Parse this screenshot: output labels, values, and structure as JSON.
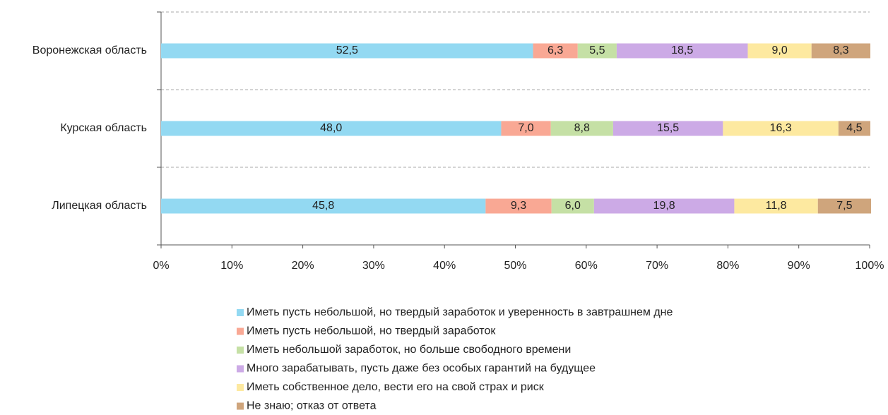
{
  "chart_data": {
    "type": "stacked-bar-horizontal",
    "categories": [
      "Воронежская область",
      "Курская область",
      "Липецкая область"
    ],
    "xlim": [
      0,
      100
    ],
    "xticks": [
      {
        "value": 0,
        "label": "0%"
      },
      {
        "value": 10,
        "label": "10%"
      },
      {
        "value": 20,
        "label": "20%"
      },
      {
        "value": 30,
        "label": "30%"
      },
      {
        "value": 40,
        "label": "40%"
      },
      {
        "value": 50,
        "label": "50%"
      },
      {
        "value": 60,
        "label": "60%"
      },
      {
        "value": 70,
        "label": "70%"
      },
      {
        "value": 80,
        "label": "80%"
      },
      {
        "value": 90,
        "label": "90%"
      },
      {
        "value": 100,
        "label": "100%"
      }
    ],
    "series": [
      {
        "name": "Иметь пусть небольшой, но твердый заработок и уверенность в завтрашнем дне",
        "color": "#93d9f2",
        "values": [
          52.5,
          48.0,
          45.8
        ],
        "value_labels": [
          "52,5",
          "48,0",
          "45,8"
        ]
      },
      {
        "name": "Иметь пусть небольшой, но твердый заработок",
        "color": "#f9a894",
        "values": [
          6.3,
          7.0,
          9.3
        ],
        "value_labels": [
          "6,3",
          "7,0",
          "9,3"
        ]
      },
      {
        "name": "Иметь небольшой заработок, но больше свободного времени",
        "color": "#c5e0a5",
        "values": [
          5.5,
          8.8,
          6.0
        ],
        "value_labels": [
          "5,5",
          "8,8",
          "6,0"
        ]
      },
      {
        "name": "Много зарабатывать, пусть даже без особых гарантий на будущее",
        "color": "#ccaae6",
        "values": [
          18.5,
          15.5,
          19.8
        ],
        "value_labels": [
          "18,5",
          "15,5",
          "19,8"
        ]
      },
      {
        "name": "Иметь собственное дело, вести его на свой страх и риск",
        "color": "#fde9a0",
        "values": [
          9.0,
          16.3,
          11.8
        ],
        "value_labels": [
          "9,0",
          "16,3",
          "11,8"
        ]
      },
      {
        "name": "Не знаю; отказ от ответа",
        "color": "#cfa57c",
        "values": [
          8.3,
          4.5,
          7.5
        ],
        "value_labels": [
          "8,3",
          "4,5",
          "7,5"
        ]
      }
    ],
    "legend": "bottom"
  }
}
